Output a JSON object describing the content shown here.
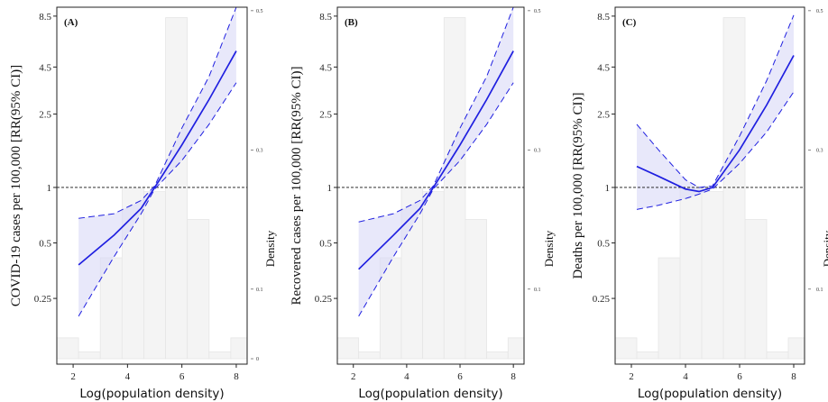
{
  "chart_data": [
    {
      "type": "line",
      "panel_label": "(A)",
      "ylabel": "COVID-19 cases per 100,000 [RR(95% CI)]",
      "xlabel": "Log(population density)",
      "y2label": "Density",
      "log_y": true,
      "x_ticks": [
        "2",
        "4",
        "6",
        "8"
      ],
      "y_ticks": [
        "0.25",
        "0.5",
        "1",
        "2.5",
        "4.5",
        "8.5"
      ],
      "y2_ticks": [
        "0",
        "0.1",
        "0.3",
        "0.5"
      ],
      "xlim": [
        1.4,
        8.4
      ],
      "ylim": [
        0.11,
        9.5
      ],
      "y2lim": [
        0,
        0.505
      ],
      "reference_line": 1,
      "histogram": {
        "bins": [
          [
            1.4,
            2.2,
            0.03
          ],
          [
            2.2,
            3.0,
            0.01
          ],
          [
            3.0,
            3.8,
            0.145
          ],
          [
            3.8,
            4.6,
            0.245
          ],
          [
            4.6,
            5.4,
            0.24
          ],
          [
            5.4,
            6.2,
            0.49
          ],
          [
            6.2,
            7.0,
            0.2
          ],
          [
            7.0,
            7.8,
            0.01
          ],
          [
            7.8,
            8.6,
            0.03
          ]
        ]
      },
      "series": [
        {
          "name": "RR",
          "x": [
            2.2,
            3.5,
            4.5,
            5.0,
            6.0,
            7.0,
            8.0
          ],
          "y": [
            0.38,
            0.55,
            0.77,
            1.0,
            1.7,
            3.0,
            5.5
          ]
        },
        {
          "name": "Lower CI",
          "x": [
            2.2,
            3.5,
            4.5,
            5.0,
            6.0,
            7.0,
            8.0
          ],
          "y": [
            0.2,
            0.42,
            0.72,
            0.98,
            1.4,
            2.2,
            3.7
          ]
        },
        {
          "name": "Upper CI",
          "x": [
            2.2,
            3.5,
            4.5,
            5.0,
            6.0,
            7.0,
            8.0
          ],
          "y": [
            0.68,
            0.72,
            0.85,
            1.02,
            2.1,
            4.0,
            9.5
          ]
        }
      ],
      "colors": {
        "line": "#1f1fe0",
        "band": "#d8d8f6",
        "hist": "#f4f4f4"
      }
    },
    {
      "type": "line",
      "panel_label": "(B)",
      "ylabel": "Recovered cases per 100,000 [RR(95% CI)]",
      "xlabel": "Log(population density)",
      "y2label": "Density",
      "log_y": true,
      "x_ticks": [
        "2",
        "4",
        "6",
        "8"
      ],
      "y_ticks": [
        "0.25",
        "0.5",
        "1",
        "2.5",
        "4.5",
        "8.5"
      ],
      "y2_ticks": [
        "0.1",
        "0.3",
        "0.5"
      ],
      "xlim": [
        1.4,
        8.4
      ],
      "ylim": [
        0.11,
        9.5
      ],
      "y2lim": [
        0,
        0.505
      ],
      "reference_line": 1,
      "histogram": {
        "bins": [
          [
            1.4,
            2.2,
            0.03
          ],
          [
            2.2,
            3.0,
            0.01
          ],
          [
            3.0,
            3.8,
            0.145
          ],
          [
            3.8,
            4.6,
            0.245
          ],
          [
            4.6,
            5.4,
            0.24
          ],
          [
            5.4,
            6.2,
            0.49
          ],
          [
            6.2,
            7.0,
            0.2
          ],
          [
            7.0,
            7.8,
            0.01
          ],
          [
            7.8,
            8.6,
            0.03
          ]
        ]
      },
      "series": [
        {
          "name": "RR",
          "x": [
            2.2,
            3.5,
            4.5,
            5.0,
            6.0,
            7.0,
            8.0
          ],
          "y": [
            0.36,
            0.55,
            0.77,
            1.0,
            1.7,
            3.0,
            5.5
          ]
        },
        {
          "name": "Lower CI",
          "x": [
            2.2,
            3.5,
            4.5,
            5.0,
            6.0,
            7.0,
            8.0
          ],
          "y": [
            0.2,
            0.42,
            0.72,
            0.98,
            1.4,
            2.2,
            3.7
          ]
        },
        {
          "name": "Upper CI",
          "x": [
            2.2,
            3.5,
            4.5,
            5.0,
            6.0,
            7.0,
            8.0
          ],
          "y": [
            0.65,
            0.72,
            0.85,
            1.02,
            2.1,
            4.0,
            9.5
          ]
        }
      ],
      "colors": {
        "line": "#1f1fe0",
        "band": "#d8d8f6",
        "hist": "#f4f4f4"
      }
    },
    {
      "type": "line",
      "panel_label": "(C)",
      "ylabel": "Deaths per 100,000 [RR(95% CI)]",
      "xlabel": "Log(population density)",
      "y2label": "Density",
      "log_y": true,
      "x_ticks": [
        "2",
        "4",
        "6",
        "8"
      ],
      "y_ticks": [
        "0.25",
        "0.5",
        "1",
        "2.5",
        "4.5",
        "8.5"
      ],
      "y2_ticks": [
        "0.1",
        "0.3",
        "0.5"
      ],
      "xlim": [
        1.4,
        8.4
      ],
      "ylim": [
        0.11,
        9.5
      ],
      "y2lim": [
        0,
        0.505
      ],
      "reference_line": 1,
      "histogram": {
        "bins": [
          [
            1.4,
            2.2,
            0.03
          ],
          [
            2.2,
            3.0,
            0.01
          ],
          [
            3.0,
            3.8,
            0.145
          ],
          [
            3.8,
            4.6,
            0.245
          ],
          [
            4.6,
            5.4,
            0.24
          ],
          [
            5.4,
            6.2,
            0.49
          ],
          [
            6.2,
            7.0,
            0.2
          ],
          [
            7.0,
            7.8,
            0.01
          ],
          [
            7.8,
            8.6,
            0.03
          ]
        ]
      },
      "series": [
        {
          "name": "RR",
          "x": [
            2.2,
            3.0,
            4.0,
            4.5,
            5.0,
            6.0,
            7.0,
            8.0
          ],
          "y": [
            1.3,
            1.15,
            0.98,
            0.95,
            1.0,
            1.6,
            2.8,
            5.2
          ]
        },
        {
          "name": "Lower CI",
          "x": [
            2.2,
            3.0,
            4.0,
            4.5,
            5.0,
            6.0,
            7.0,
            8.0
          ],
          "y": [
            0.76,
            0.8,
            0.87,
            0.92,
            0.98,
            1.35,
            2.0,
            3.3
          ]
        },
        {
          "name": "Upper CI",
          "x": [
            2.2,
            3.0,
            4.0,
            4.5,
            5.0,
            6.0,
            7.0,
            8.0
          ],
          "y": [
            2.2,
            1.6,
            1.1,
            1.0,
            1.02,
            1.9,
            3.8,
            8.6
          ]
        }
      ],
      "colors": {
        "line": "#1f1fe0",
        "band": "#d8d8f6",
        "hist": "#f4f4f4"
      }
    }
  ]
}
